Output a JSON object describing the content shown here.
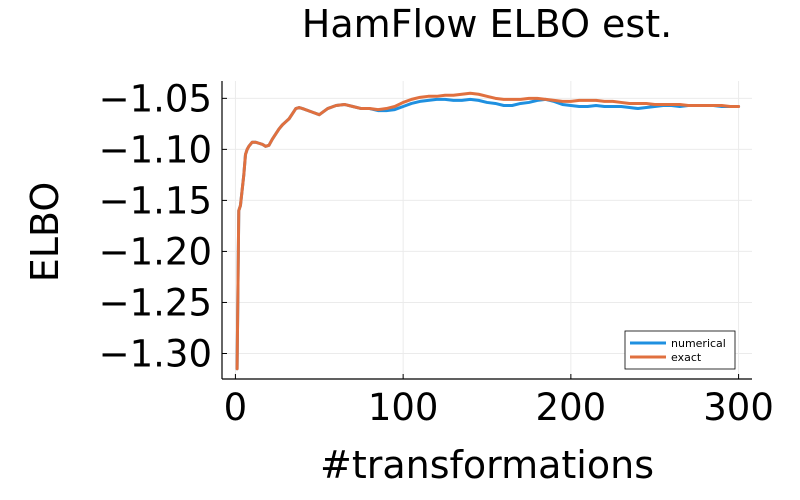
{
  "chart_data": {
    "type": "line",
    "title": "HamFlow ELBO est.",
    "xlabel": "#transformations",
    "ylabel": "ELBO",
    "xlim": [
      -8,
      308
    ],
    "ylim": [
      -1.325,
      -1.033
    ],
    "xticks": [
      0,
      100,
      200,
      300
    ],
    "xtick_labels": [
      "0",
      "100",
      "200",
      "300"
    ],
    "yticks": [
      -1.3,
      -1.25,
      -1.2,
      -1.15,
      -1.1,
      -1.05
    ],
    "ytick_labels": [
      "−1.30",
      "−1.25",
      "−1.20",
      "−1.15",
      "−1.10",
      "−1.05"
    ],
    "grid": true,
    "legend_position": "bottom-right",
    "series": [
      {
        "name": "numerical",
        "color": "#1f90e0",
        "x": [
          1,
          2,
          3,
          4,
          5,
          6,
          7,
          8,
          10,
          12,
          14,
          16,
          18,
          20,
          22,
          24,
          26,
          28,
          30,
          32,
          34,
          36,
          38,
          40,
          45,
          50,
          55,
          60,
          65,
          70,
          75,
          80,
          85,
          90,
          95,
          100,
          105,
          110,
          115,
          120,
          125,
          130,
          135,
          140,
          145,
          150,
          155,
          160,
          165,
          170,
          175,
          180,
          185,
          190,
          195,
          200,
          205,
          210,
          215,
          220,
          225,
          230,
          235,
          240,
          245,
          250,
          255,
          260,
          265,
          270,
          275,
          280,
          285,
          290,
          295,
          300
        ],
        "y": [
          -1.315,
          -1.16,
          -1.155,
          -1.14,
          -1.125,
          -1.105,
          -1.1,
          -1.097,
          -1.093,
          -1.093,
          -1.094,
          -1.095,
          -1.097,
          -1.096,
          -1.09,
          -1.085,
          -1.08,
          -1.076,
          -1.073,
          -1.07,
          -1.065,
          -1.06,
          -1.059,
          -1.06,
          -1.063,
          -1.066,
          -1.06,
          -1.057,
          -1.056,
          -1.058,
          -1.06,
          -1.06,
          -1.062,
          -1.062,
          -1.061,
          -1.058,
          -1.055,
          -1.053,
          -1.052,
          -1.051,
          -1.051,
          -1.052,
          -1.052,
          -1.051,
          -1.052,
          -1.054,
          -1.055,
          -1.057,
          -1.057,
          -1.055,
          -1.054,
          -1.052,
          -1.051,
          -1.053,
          -1.056,
          -1.057,
          -1.058,
          -1.058,
          -1.057,
          -1.058,
          -1.058,
          -1.058,
          -1.059,
          -1.06,
          -1.059,
          -1.058,
          -1.057,
          -1.057,
          -1.058,
          -1.057,
          -1.057,
          -1.057,
          -1.057,
          -1.058,
          -1.058,
          -1.058
        ]
      },
      {
        "name": "exact",
        "color": "#e0703f",
        "x": [
          1,
          2,
          3,
          4,
          5,
          6,
          7,
          8,
          10,
          12,
          14,
          16,
          18,
          20,
          22,
          24,
          26,
          28,
          30,
          32,
          34,
          36,
          38,
          40,
          45,
          50,
          55,
          60,
          65,
          70,
          75,
          80,
          85,
          90,
          95,
          100,
          105,
          110,
          115,
          120,
          125,
          130,
          135,
          140,
          145,
          150,
          155,
          160,
          165,
          170,
          175,
          180,
          185,
          190,
          195,
          200,
          205,
          210,
          215,
          220,
          225,
          230,
          235,
          240,
          245,
          250,
          255,
          260,
          265,
          270,
          275,
          280,
          285,
          290,
          295,
          300
        ],
        "y": [
          -1.315,
          -1.16,
          -1.155,
          -1.14,
          -1.125,
          -1.105,
          -1.1,
          -1.097,
          -1.093,
          -1.093,
          -1.094,
          -1.095,
          -1.097,
          -1.096,
          -1.09,
          -1.085,
          -1.08,
          -1.076,
          -1.073,
          -1.07,
          -1.065,
          -1.06,
          -1.059,
          -1.06,
          -1.063,
          -1.066,
          -1.06,
          -1.057,
          -1.056,
          -1.058,
          -1.06,
          -1.06,
          -1.061,
          -1.06,
          -1.058,
          -1.054,
          -1.051,
          -1.049,
          -1.048,
          -1.048,
          -1.047,
          -1.047,
          -1.046,
          -1.045,
          -1.046,
          -1.048,
          -1.05,
          -1.051,
          -1.051,
          -1.051,
          -1.05,
          -1.05,
          -1.051,
          -1.052,
          -1.053,
          -1.053,
          -1.052,
          -1.052,
          -1.052,
          -1.053,
          -1.053,
          -1.054,
          -1.055,
          -1.055,
          -1.055,
          -1.056,
          -1.056,
          -1.056,
          -1.056,
          -1.057,
          -1.057,
          -1.057,
          -1.057,
          -1.057,
          -1.058,
          -1.058
        ]
      }
    ]
  }
}
